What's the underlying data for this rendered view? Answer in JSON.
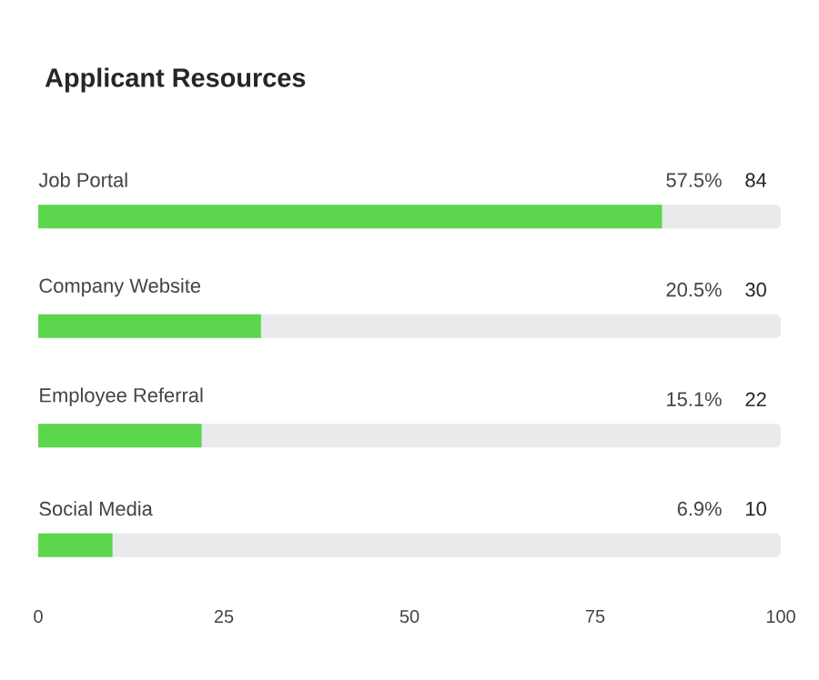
{
  "chart_data": {
    "type": "bar",
    "orientation": "horizontal",
    "title": "Applicant Resources",
    "categories": [
      "Job Portal",
      "Company Website",
      "Employee Referral",
      "Social Media"
    ],
    "values": [
      84,
      30,
      22,
      10
    ],
    "value_labels": [
      "84",
      "30",
      "22",
      "10"
    ],
    "data_labels": true,
    "annotations": [
      "57.5%",
      "20.5%",
      "15.1%",
      "6.9%"
    ],
    "color": "#5cd64c",
    "xlim": [
      0,
      100
    ],
    "xticks": [
      0,
      25,
      50,
      75,
      100
    ],
    "grid": false
  }
}
